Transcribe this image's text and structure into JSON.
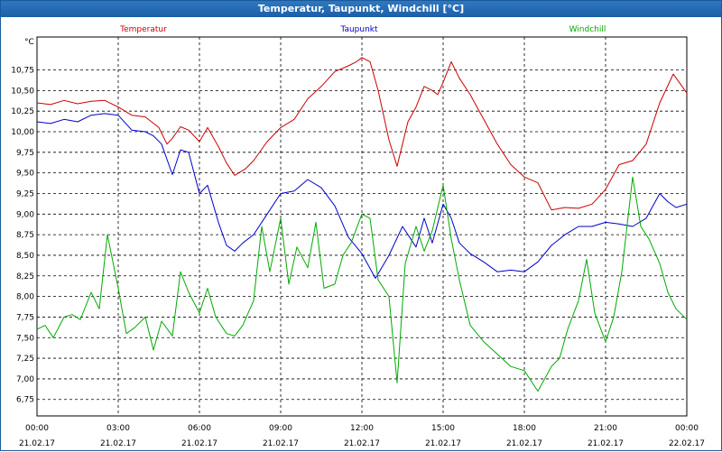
{
  "window": {
    "title": "Temperatur, Taupunkt, Windchill [°C]"
  },
  "chart_data": {
    "type": "line",
    "title": "Temperatur, Taupunkt, Windchill [°C]",
    "ylabel": "°C",
    "ylim": [
      6.55,
      11.15
    ],
    "xlim": [
      0,
      24
    ],
    "grid": true,
    "legend": "top",
    "y_ticks": [
      "10,75",
      "10,50",
      "10,25",
      "10,00",
      "9,75",
      "9,50",
      "9,25",
      "9,00",
      "8,75",
      "8,50",
      "8,25",
      "8,00",
      "7,75",
      "7,50",
      "7,25",
      "7,00",
      "6,75"
    ],
    "x_ticks": [
      {
        "time": "00:00",
        "date": "21.02.17"
      },
      {
        "time": "03:00",
        "date": "21.02.17"
      },
      {
        "time": "06:00",
        "date": "21.02.17"
      },
      {
        "time": "09:00",
        "date": "21.02.17"
      },
      {
        "time": "12:00",
        "date": "21.02.17"
      },
      {
        "time": "15:00",
        "date": "21.02.17"
      },
      {
        "time": "18:00",
        "date": "21.02.17"
      },
      {
        "time": "21:00",
        "date": "21.02.17"
      },
      {
        "time": "00:00",
        "date": "22.02.17"
      }
    ],
    "series": [
      {
        "name": "Temperatur",
        "color": "#cc0000",
        "x": [
          0,
          0.5,
          1,
          1.5,
          2,
          2.5,
          3,
          3.5,
          4,
          4.5,
          4.8,
          5,
          5.3,
          5.6,
          6,
          6.3,
          6.7,
          7,
          7.3,
          7.7,
          8,
          8.5,
          9,
          9.5,
          10,
          10.5,
          11,
          11.5,
          11.8,
          12,
          12.3,
          12.6,
          13,
          13.3,
          13.7,
          14,
          14.3,
          14.6,
          14.8,
          15,
          15.3,
          15.6,
          16,
          16.5,
          17,
          17.5,
          18,
          18.5,
          19,
          19.5,
          20,
          20.5,
          21,
          21.5,
          22,
          22.5,
          23,
          23.5,
          24
        ],
        "values": [
          10.35,
          10.33,
          10.38,
          10.34,
          10.37,
          10.38,
          10.3,
          10.2,
          10.18,
          10.05,
          9.85,
          9.92,
          10.06,
          10.02,
          9.88,
          10.05,
          9.82,
          9.62,
          9.47,
          9.55,
          9.65,
          9.88,
          10.05,
          10.15,
          10.4,
          10.55,
          10.73,
          10.8,
          10.85,
          10.9,
          10.85,
          10.5,
          9.9,
          9.58,
          10.12,
          10.3,
          10.55,
          10.5,
          10.45,
          10.6,
          10.85,
          10.65,
          10.45,
          10.15,
          9.85,
          9.6,
          9.45,
          9.38,
          9.05,
          9.08,
          9.07,
          9.12,
          9.3,
          9.6,
          9.65,
          9.85,
          10.35,
          10.7,
          10.47
        ]
      },
      {
        "name": "Taupunkt",
        "color": "#0000cc",
        "x": [
          0,
          0.5,
          1,
          1.5,
          2,
          2.5,
          3,
          3.5,
          4,
          4.3,
          4.6,
          5,
          5.3,
          5.6,
          6,
          6.3,
          6.7,
          7,
          7.3,
          7.6,
          8,
          8.5,
          9,
          9.5,
          10,
          10.5,
          11,
          11.5,
          12,
          12.5,
          13,
          13.5,
          14,
          14.3,
          14.6,
          15,
          15.3,
          15.6,
          16,
          16.5,
          17,
          17.5,
          18,
          18.5,
          19,
          19.5,
          20,
          20.5,
          21,
          21.5,
          22,
          22.5,
          23,
          23.3,
          23.6,
          24
        ],
        "values": [
          10.12,
          10.1,
          10.15,
          10.12,
          10.2,
          10.22,
          10.2,
          10.02,
          10.0,
          9.95,
          9.85,
          9.48,
          9.78,
          9.75,
          9.25,
          9.35,
          8.9,
          8.62,
          8.55,
          8.65,
          8.75,
          9.0,
          9.25,
          9.28,
          9.42,
          9.32,
          9.1,
          8.72,
          8.52,
          8.22,
          8.5,
          8.85,
          8.6,
          8.95,
          8.65,
          9.12,
          8.95,
          8.65,
          8.52,
          8.42,
          8.3,
          8.32,
          8.3,
          8.42,
          8.62,
          8.75,
          8.85,
          8.85,
          8.9,
          8.88,
          8.85,
          8.95,
          9.25,
          9.15,
          9.08,
          9.12
        ]
      },
      {
        "name": "Windchill",
        "color": "#00aa00",
        "x": [
          0,
          0.3,
          0.6,
          1,
          1.3,
          1.6,
          2,
          2.3,
          2.6,
          3,
          3.3,
          3.6,
          4,
          4.3,
          4.6,
          5,
          5.3,
          5.6,
          6,
          6.3,
          6.6,
          7,
          7.3,
          7.6,
          8,
          8.3,
          8.6,
          9,
          9.3,
          9.6,
          10,
          10.3,
          10.6,
          11,
          11.3,
          11.6,
          12,
          12.3,
          12.6,
          13,
          13.3,
          13.6,
          14,
          14.3,
          14.6,
          15,
          15.3,
          15.6,
          16,
          16.5,
          17,
          17.5,
          18,
          18.5,
          19,
          19.3,
          19.6,
          20,
          20.3,
          20.6,
          21,
          21.3,
          21.6,
          22,
          22.3,
          22.6,
          23,
          23.3,
          23.6,
          24
        ],
        "values": [
          7.6,
          7.65,
          7.5,
          7.75,
          7.78,
          7.72,
          8.05,
          7.85,
          8.75,
          8.1,
          7.55,
          7.62,
          7.75,
          7.35,
          7.7,
          7.52,
          8.3,
          8.05,
          7.8,
          8.1,
          7.75,
          7.55,
          7.52,
          7.65,
          7.95,
          8.85,
          8.3,
          8.95,
          8.15,
          8.6,
          8.35,
          8.9,
          8.1,
          8.15,
          8.5,
          8.65,
          9.0,
          8.95,
          8.2,
          8.0,
          6.95,
          8.4,
          8.85,
          8.55,
          8.8,
          9.35,
          8.7,
          8.2,
          7.65,
          7.45,
          7.3,
          7.15,
          7.1,
          6.85,
          7.15,
          7.25,
          7.6,
          7.95,
          8.45,
          7.8,
          7.45,
          7.75,
          8.3,
          9.45,
          8.85,
          8.7,
          8.4,
          8.05,
          7.85,
          7.72
        ]
      }
    ]
  }
}
